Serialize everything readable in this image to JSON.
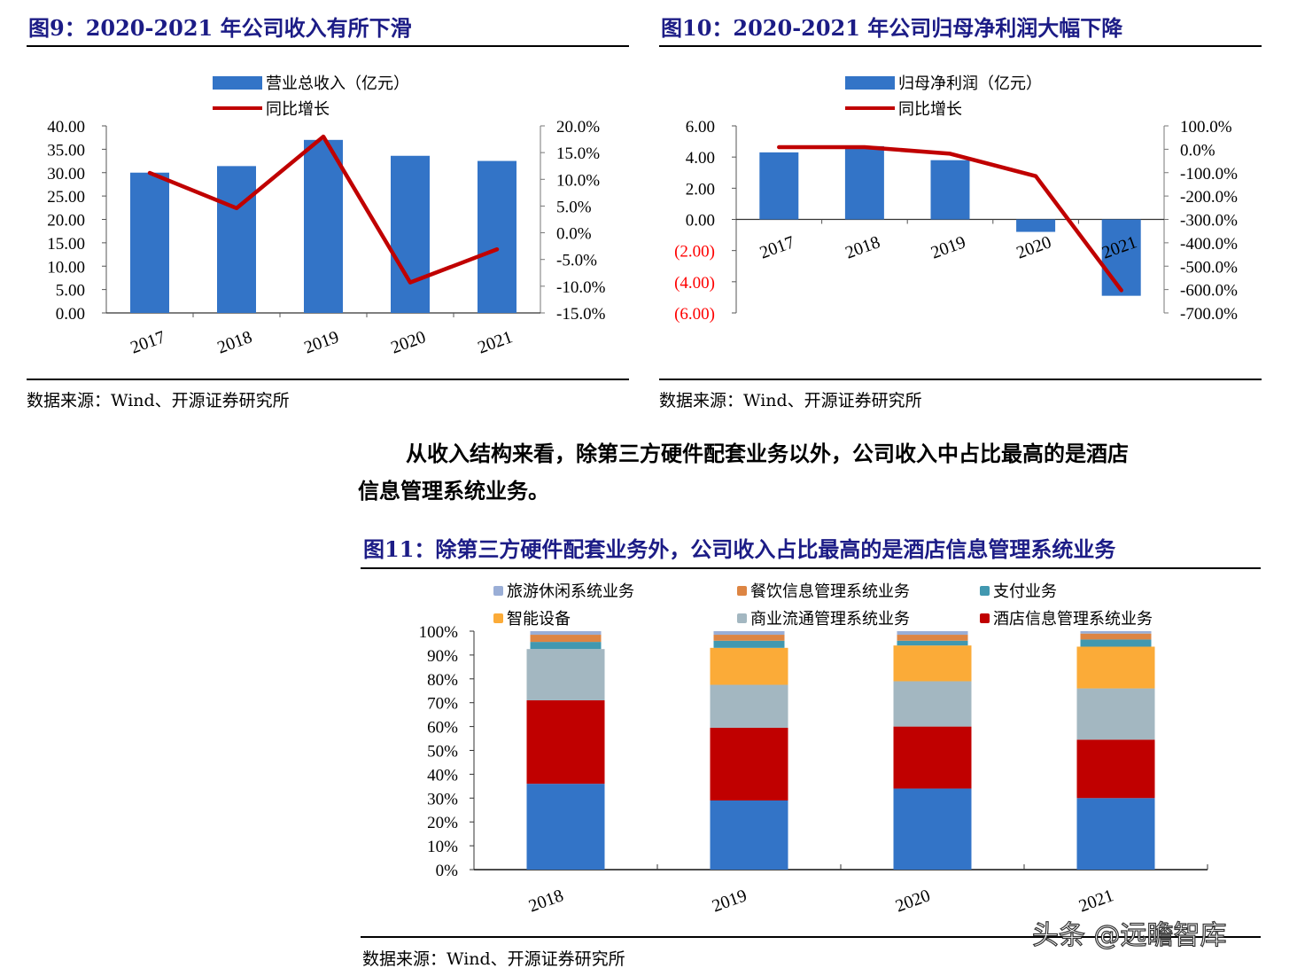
{
  "fig9": {
    "title": "图9：2020-2021 年公司收入有所下滑",
    "source": "数据来源：Wind、开源证券研究所"
  },
  "fig10": {
    "title": "图10：2020-2021 年公司归母净利润大幅下降",
    "source": "数据来源：Wind、开源证券研究所"
  },
  "paragraph": {
    "line1": "从收入结构来看，除第三方硬件配套业务以外，公司收入中占比最高的是酒店",
    "line2": "信息管理系统业务。"
  },
  "fig11": {
    "title": "图11：除第三方硬件配套业务外，公司收入占比最高的是酒店信息管理系统业务",
    "source": "数据来源：Wind、开源证券研究所"
  },
  "watermark": "头条 @远瞻智库",
  "chart_data": [
    {
      "type": "bar+line",
      "categories": [
        "2017",
        "2018",
        "2019",
        "2020",
        "2021"
      ],
      "series": [
        {
          "name": "营业总收入（亿元）",
          "kind": "bar",
          "axis": "left",
          "color": "#3374c7",
          "values": [
            30.0,
            31.4,
            37.0,
            33.6,
            32.5
          ]
        },
        {
          "name": "同比增长",
          "kind": "line",
          "axis": "right",
          "color": "#c00000",
          "values": [
            11.2,
            4.6,
            18.0,
            -9.3,
            -3.1
          ]
        }
      ],
      "y_left": {
        "range": [
          0,
          40
        ],
        "ticks": [
          "0.00",
          "5.00",
          "10.00",
          "15.00",
          "20.00",
          "25.00",
          "30.00",
          "35.00",
          "40.00"
        ]
      },
      "y_right": {
        "range": [
          -15,
          20
        ],
        "unit": "%",
        "ticks": [
          "-15.0%",
          "-10.0%",
          "-5.0%",
          "0.0%",
          "5.0%",
          "10.0%",
          "15.0%",
          "20.0%"
        ]
      },
      "grid": false,
      "legend": "top"
    },
    {
      "type": "bar+line",
      "categories": [
        "2017",
        "2018",
        "2019",
        "2020",
        "2021"
      ],
      "series": [
        {
          "name": "归母净利润（亿元）",
          "kind": "bar",
          "axis": "left",
          "color": "#3374c7",
          "values": [
            4.3,
            4.7,
            3.8,
            -0.8,
            -4.9
          ]
        },
        {
          "name": "同比增长",
          "kind": "line",
          "axis": "right",
          "color": "#c00000",
          "values": [
            9,
            9,
            -19,
            -115,
            -603
          ]
        }
      ],
      "y_left": {
        "range": [
          -6,
          6
        ],
        "ticks": [
          "(6.00)",
          "(4.00)",
          "(2.00)",
          "0.00",
          "2.00",
          "4.00",
          "6.00"
        ],
        "negative_tick_color": "#ff0000"
      },
      "y_right": {
        "range": [
          -700,
          100
        ],
        "unit": "%",
        "ticks": [
          "-700.0%",
          "-600.0%",
          "-500.0%",
          "-400.0%",
          "-300.0%",
          "-200.0%",
          "-100.0%",
          "0.0%",
          "100.0%"
        ]
      },
      "grid": false,
      "legend": "top"
    },
    {
      "type": "stacked-bar-100",
      "categories": [
        "2018",
        "2019",
        "2020",
        "2021"
      ],
      "series": [
        {
          "color": "#3374c7",
          "values": [
            36,
            29,
            34,
            30
          ]
        },
        {
          "name": "酒店信息管理系统业务",
          "color": "#c00000",
          "values": [
            35,
            30.5,
            26,
            24.5
          ]
        },
        {
          "name": "商业流通管理系统业务",
          "color": "#a3b7c1",
          "values": [
            21.5,
            18,
            19,
            21.5
          ]
        },
        {
          "name": "智能设备",
          "color": "#fbab38",
          "values": [
            0,
            15.5,
            15,
            17.5
          ]
        },
        {
          "name": "支付业务",
          "color": "#4198b0",
          "values": [
            3,
            3,
            2,
            3
          ]
        },
        {
          "name": "餐饮信息管理系统业务",
          "color": "#dd8543",
          "values": [
            3,
            2.5,
            2.5,
            2.5
          ]
        },
        {
          "name": "旅游休闲系统业务",
          "color": "#9aaed6",
          "values": [
            1.5,
            1.5,
            1.5,
            1
          ]
        }
      ],
      "legend_order": [
        "旅游休闲系统业务",
        "餐饮信息管理系统业务",
        "支付业务",
        "智能设备",
        "商业流通管理系统业务",
        "酒店信息管理系统业务"
      ],
      "y": {
        "range": [
          0,
          100
        ],
        "unit": "%",
        "ticks": [
          "0%",
          "10%",
          "20%",
          "30%",
          "40%",
          "50%",
          "60%",
          "70%",
          "80%",
          "90%",
          "100%"
        ]
      },
      "grid": false,
      "legend": "top"
    }
  ]
}
